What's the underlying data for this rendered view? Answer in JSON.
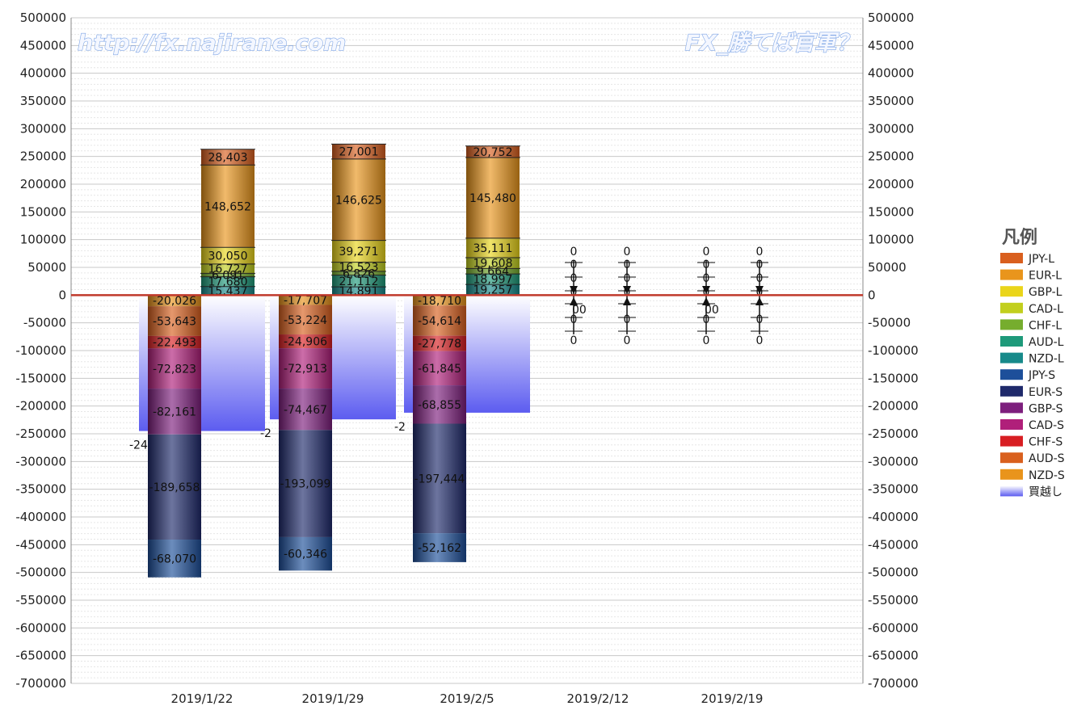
{
  "chart_data": {
    "type": "bar",
    "subtype": "stacked-with-overlay",
    "categories": [
      "2019/1/22",
      "2019/1/29",
      "2019/2/5",
      "2019/2/12",
      "2019/2/19"
    ],
    "ylim": [
      -700000,
      500000
    ],
    "ytick_step": 50000,
    "yaxis_both_sides": true,
    "grid": true,
    "legend": {
      "title": "凡例",
      "position": "right",
      "items": [
        {
          "name": "JPY-L",
          "color": "#d95f1e"
        },
        {
          "name": "EUR-L",
          "color": "#e9951c"
        },
        {
          "name": "GBP-L",
          "color": "#ead51a"
        },
        {
          "name": "CAD-L",
          "color": "#c2cf1e"
        },
        {
          "name": "CHF-L",
          "color": "#76ad2e"
        },
        {
          "name": "AUD-L",
          "color": "#1e9a7a"
        },
        {
          "name": "NZD-L",
          "color": "#178a8a"
        },
        {
          "name": "JPY-S",
          "color": "#1d4f9a"
        },
        {
          "name": "EUR-S",
          "color": "#1f2a6b"
        },
        {
          "name": "GBP-S",
          "color": "#7d1f7d"
        },
        {
          "name": "CAD-S",
          "color": "#b01f7a"
        },
        {
          "name": "CHF-S",
          "color": "#d81e22"
        },
        {
          "name": "AUD-S",
          "color": "#d9601e"
        },
        {
          "name": "NZD-S",
          "color": "#e9941c"
        },
        {
          "name": "買越し",
          "color": "#8f8ff5"
        }
      ]
    },
    "long_stack_order": [
      "NZD-L",
      "AUD-L",
      "CHF-L",
      "CAD-L",
      "GBP-L",
      "EUR-L",
      "JPY-L"
    ],
    "short_stack_order": [
      "NZD-S",
      "AUD-S",
      "CHF-S",
      "CAD-S",
      "GBP-S",
      "EUR-S",
      "JPY-S"
    ],
    "series": [
      {
        "name": "JPY-L",
        "values": [
          28403,
          27001,
          20752,
          0,
          0
        ]
      },
      {
        "name": "EUR-L",
        "values": [
          148652,
          146625,
          145480,
          0,
          0
        ]
      },
      {
        "name": "GBP-L",
        "values": [
          30050,
          39271,
          35111,
          0,
          0
        ]
      },
      {
        "name": "CAD-L",
        "values": [
          16727,
          16523,
          19608,
          0,
          0
        ]
      },
      {
        "name": "CHF-L",
        "values": [
          6091,
          6826,
          9664,
          0,
          0
        ]
      },
      {
        "name": "AUD-L",
        "values": [
          17680,
          21112,
          18997,
          0,
          0
        ]
      },
      {
        "name": "NZD-L",
        "values": [
          15437,
          14891,
          19257,
          0,
          0
        ]
      },
      {
        "name": "NZD-S",
        "values": [
          -20026,
          -17707,
          -18710,
          0,
          0
        ]
      },
      {
        "name": "AUD-S",
        "values": [
          -53643,
          -53224,
          -54614,
          0,
          0
        ]
      },
      {
        "name": "CHF-S",
        "values": [
          -22493,
          -24906,
          -27778,
          0,
          0
        ]
      },
      {
        "name": "CAD-S",
        "values": [
          -72823,
          -72913,
          -61845,
          0,
          0
        ]
      },
      {
        "name": "GBP-S",
        "values": [
          -82161,
          -74467,
          -68855,
          0,
          0
        ]
      },
      {
        "name": "EUR-S",
        "values": [
          -189658,
          -193099,
          -197444,
          0,
          0
        ]
      },
      {
        "name": "JPY-S",
        "values": [
          -68070,
          -60346,
          -52162,
          0,
          0
        ]
      },
      {
        "name": "買越し",
        "values": [
          -245000,
          -224000,
          -212000,
          0,
          0
        ]
      }
    ],
    "net_labels": [
      "-24",
      "-2",
      "-2"
    ],
    "zero_labels": [
      "0",
      "0",
      "0",
      "0",
      "0",
      "00",
      "0",
      "0"
    ],
    "watermarks": [
      "http://fx.najirane.com",
      "FX_勝てば官軍？"
    ]
  }
}
